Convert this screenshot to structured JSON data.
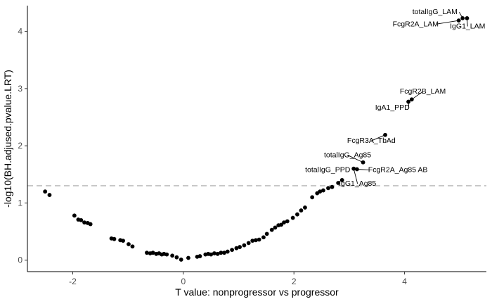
{
  "chart_data": {
    "type": "scatter",
    "title": "",
    "xlabel": "T value: nonprogressor vs progressor",
    "ylabel": "-log10(BH.adjused.pvalue.LRT)",
    "xlim": [
      -2.82,
      5.48
    ],
    "ylim": [
      -0.2,
      4.45
    ],
    "xticks": [
      -2,
      0,
      2,
      4
    ],
    "yticks": [
      0,
      1,
      2,
      3,
      4
    ],
    "grid": false,
    "threshold": {
      "y": 1.301,
      "style": "dashed",
      "color": "#bfbfbf"
    },
    "point_color": "#000000",
    "points": [
      {
        "x": -2.5,
        "y": 1.2
      },
      {
        "x": -2.42,
        "y": 1.14
      },
      {
        "x": -1.97,
        "y": 0.78
      },
      {
        "x": -1.9,
        "y": 0.71
      },
      {
        "x": -1.85,
        "y": 0.7
      },
      {
        "x": -1.79,
        "y": 0.66
      },
      {
        "x": -1.73,
        "y": 0.65
      },
      {
        "x": -1.68,
        "y": 0.63
      },
      {
        "x": -1.3,
        "y": 0.38
      },
      {
        "x": -1.25,
        "y": 0.37
      },
      {
        "x": -1.14,
        "y": 0.35
      },
      {
        "x": -1.09,
        "y": 0.34
      },
      {
        "x": -0.99,
        "y": 0.28
      },
      {
        "x": -0.92,
        "y": 0.24
      },
      {
        "x": -0.66,
        "y": 0.13
      },
      {
        "x": -0.6,
        "y": 0.12
      },
      {
        "x": -0.55,
        "y": 0.13
      },
      {
        "x": -0.49,
        "y": 0.11
      },
      {
        "x": -0.44,
        "y": 0.12
      },
      {
        "x": -0.39,
        "y": 0.1
      },
      {
        "x": -0.35,
        "y": 0.11
      },
      {
        "x": -0.3,
        "y": 0.1
      },
      {
        "x": -0.2,
        "y": 0.08
      },
      {
        "x": -0.12,
        "y": 0.05
      },
      {
        "x": -0.04,
        "y": 0.01
      },
      {
        "x": 0.09,
        "y": 0.04
      },
      {
        "x": 0.25,
        "y": 0.06
      },
      {
        "x": 0.3,
        "y": 0.07
      },
      {
        "x": 0.4,
        "y": 0.1
      },
      {
        "x": 0.45,
        "y": 0.11
      },
      {
        "x": 0.5,
        "y": 0.1
      },
      {
        "x": 0.56,
        "y": 0.12
      },
      {
        "x": 0.62,
        "y": 0.11
      },
      {
        "x": 0.68,
        "y": 0.13
      },
      {
        "x": 0.74,
        "y": 0.13
      },
      {
        "x": 0.8,
        "y": 0.15
      },
      {
        "x": 0.88,
        "y": 0.18
      },
      {
        "x": 0.96,
        "y": 0.21
      },
      {
        "x": 1.02,
        "y": 0.23
      },
      {
        "x": 1.1,
        "y": 0.26
      },
      {
        "x": 1.18,
        "y": 0.3
      },
      {
        "x": 1.25,
        "y": 0.34
      },
      {
        "x": 1.31,
        "y": 0.35
      },
      {
        "x": 1.37,
        "y": 0.36
      },
      {
        "x": 1.45,
        "y": 0.4
      },
      {
        "x": 1.51,
        "y": 0.46
      },
      {
        "x": 1.6,
        "y": 0.53
      },
      {
        "x": 1.66,
        "y": 0.57
      },
      {
        "x": 1.72,
        "y": 0.61
      },
      {
        "x": 1.77,
        "y": 0.62
      },
      {
        "x": 1.82,
        "y": 0.66
      },
      {
        "x": 1.88,
        "y": 0.68
      },
      {
        "x": 1.98,
        "y": 0.74
      },
      {
        "x": 2.06,
        "y": 0.8
      },
      {
        "x": 2.13,
        "y": 0.87
      },
      {
        "x": 2.2,
        "y": 0.92
      },
      {
        "x": 2.33,
        "y": 1.1
      },
      {
        "x": 2.42,
        "y": 1.17
      },
      {
        "x": 2.47,
        "y": 1.2
      },
      {
        "x": 2.53,
        "y": 1.22
      },
      {
        "x": 2.62,
        "y": 1.26
      },
      {
        "x": 2.69,
        "y": 1.28
      },
      {
        "x": 2.8,
        "y": 1.35
      },
      {
        "x": 2.87,
        "y": 1.4
      },
      {
        "x": 3.08,
        "y": 1.6
      },
      {
        "x": 3.14,
        "y": 1.59
      },
      {
        "x": 3.25,
        "y": 1.71
      },
      {
        "x": 3.65,
        "y": 2.19
      },
      {
        "x": 4.07,
        "y": 2.77
      },
      {
        "x": 4.13,
        "y": 2.81
      },
      {
        "x": 4.98,
        "y": 4.19
      },
      {
        "x": 5.05,
        "y": 4.23
      },
      {
        "x": 5.13,
        "y": 4.23
      }
    ],
    "annotations": [
      {
        "text": "totalIgG_LAM",
        "x": 4.55,
        "y": 4.3,
        "anchor": "middle",
        "px": 5.05,
        "py": 4.23
      },
      {
        "text": "FcgR2A_LAM",
        "x": 4.2,
        "y": 4.09,
        "anchor": "middle",
        "px": 4.98,
        "py": 4.19
      },
      {
        "text": "IgG1_LAM",
        "x": 5.14,
        "y": 4.05,
        "anchor": "middle",
        "px": 5.13,
        "py": 4.23
      },
      {
        "text": "FcgR2B_LAM",
        "x": 4.33,
        "y": 2.91,
        "anchor": "middle",
        "px": 4.13,
        "py": 2.81
      },
      {
        "text": "IgA1_PPD",
        "x": 3.78,
        "y": 2.63,
        "anchor": "middle",
        "px": 4.07,
        "py": 2.77
      },
      {
        "text": "FcgR3A_TbAd",
        "x": 3.4,
        "y": 2.05,
        "anchor": "middle",
        "px": 3.65,
        "py": 2.19
      },
      {
        "text": "totalIgG_Ag85",
        "x": 2.97,
        "y": 1.8,
        "anchor": "middle",
        "px": 3.25,
        "py": 1.71
      },
      {
        "text": "totalIgG_PPD",
        "x": 2.61,
        "y": 1.54,
        "anchor": "middle",
        "px": 3.08,
        "py": 1.6
      },
      {
        "text": "FcgR2A_Ag85 AB",
        "x": 3.88,
        "y": 1.54,
        "anchor": "middle",
        "px": 3.14,
        "py": 1.59
      },
      {
        "text": "IgG1_Ag85",
        "x": 3.15,
        "y": 1.3,
        "anchor": "middle",
        "px": 3.08,
        "py": 1.6
      }
    ]
  }
}
